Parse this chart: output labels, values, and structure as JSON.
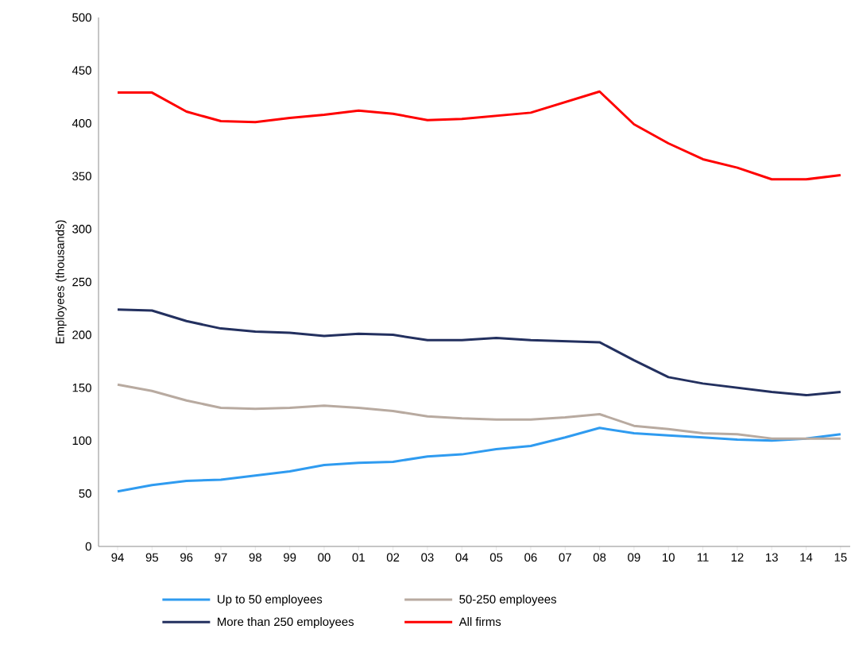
{
  "chart_data": {
    "type": "line",
    "ylabel": "Employees (thousands)",
    "categories": [
      "94",
      "95",
      "96",
      "97",
      "98",
      "99",
      "00",
      "01",
      "02",
      "03",
      "04",
      "05",
      "06",
      "07",
      "08",
      "09",
      "10",
      "11",
      "12",
      "13",
      "14",
      "15"
    ],
    "series": [
      {
        "name": "Up to 50 employees",
        "color": "#2f9bf0",
        "values": [
          52,
          58,
          62,
          63,
          67,
          71,
          77,
          79,
          80,
          85,
          87,
          92,
          95,
          103,
          112,
          107,
          105,
          103,
          101,
          100,
          102,
          106
        ]
      },
      {
        "name": "50-250 employees",
        "color": "#b8aaa0",
        "values": [
          153,
          147,
          138,
          131,
          130,
          131,
          133,
          131,
          128,
          123,
          121,
          120,
          120,
          122,
          125,
          114,
          111,
          107,
          106,
          102,
          102,
          102
        ]
      },
      {
        "name": "More than 250 employees",
        "color": "#23305f",
        "values": [
          224,
          223,
          213,
          206,
          203,
          202,
          199,
          201,
          200,
          195,
          195,
          197,
          195,
          194,
          193,
          176,
          160,
          154,
          150,
          146,
          143,
          146
        ]
      },
      {
        "name": "All firms",
        "color": "#ff0000",
        "values": [
          429,
          429,
          411,
          402,
          401,
          405,
          408,
          412,
          409,
          403,
          404,
          407,
          410,
          420,
          430,
          399,
          381,
          366,
          358,
          347,
          347,
          351
        ]
      }
    ],
    "ylim": [
      0,
      500
    ],
    "yticks": [
      0,
      50,
      100,
      150,
      200,
      250,
      300,
      350,
      400,
      450,
      500
    ],
    "grid": false,
    "legend": "bottom",
    "marker": "none",
    "line_style": "solid"
  }
}
